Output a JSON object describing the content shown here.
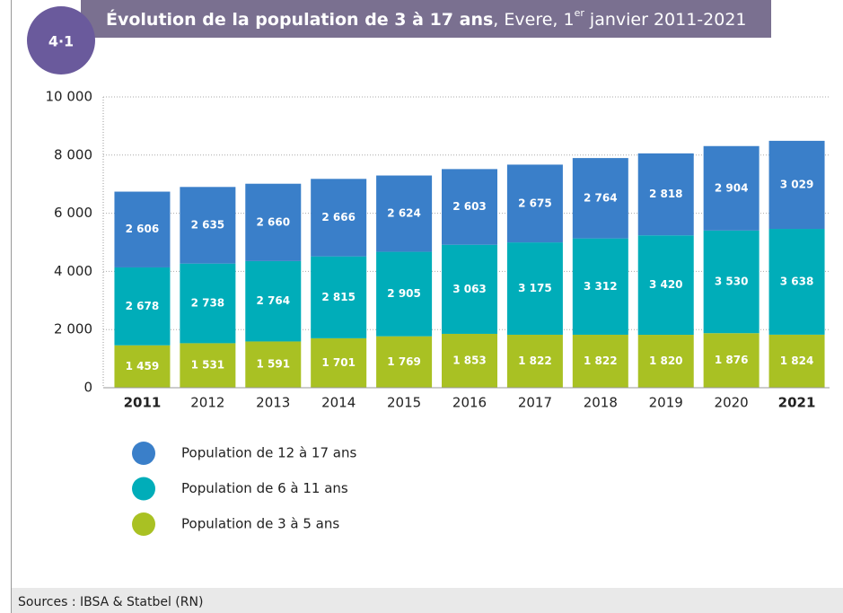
{
  "badge": "4·1",
  "source": "Sources : IBSA & Statbel (RN)",
  "chart_data": {
    "type": "stacked_bar",
    "title": "Évolution de la population de 3 à 17 ans",
    "title_suffix": ", Evere, 1",
    "title_sup": "er",
    "title_end": " janvier 2011-2021",
    "categories": [
      "2011",
      "2012",
      "2013",
      "2014",
      "2015",
      "2016",
      "2017",
      "2018",
      "2019",
      "2020",
      "2021"
    ],
    "series": [
      {
        "name": "Population de 3 à 5 ans",
        "color": "#a9c123",
        "values": [
          1459,
          1531,
          1591,
          1701,
          1769,
          1853,
          1822,
          1822,
          1820,
          1876,
          1824
        ],
        "value_labels": [
          "1 459",
          "1 531",
          "1 591",
          "1 701",
          "1 769",
          "1 853",
          "1 822",
          "1 822",
          "1 820",
          "1 876",
          "1 824"
        ]
      },
      {
        "name": "Population de 6 à 11 ans",
        "color": "#00adb9",
        "values": [
          2678,
          2738,
          2764,
          2815,
          2905,
          3063,
          3175,
          3312,
          3420,
          3530,
          3638
        ],
        "value_labels": [
          "2 678",
          "2 738",
          "2 764",
          "2 815",
          "2 905",
          "3 063",
          "3 175",
          "3 312",
          "3 420",
          "3 530",
          "3 638"
        ]
      },
      {
        "name": "Population de 12 à 17 ans",
        "color": "#3a7fc9",
        "values": [
          2606,
          2635,
          2660,
          2666,
          2624,
          2603,
          2675,
          2764,
          2818,
          2904,
          3029
        ],
        "value_labels": [
          "2 606",
          "2 635",
          "2 660",
          "2 666",
          "2 624",
          "2 603",
          "2 675",
          "2 764",
          "2 818",
          "2 904",
          "3 029"
        ]
      }
    ],
    "ylim": [
      0,
      10000
    ],
    "yticks": [
      0,
      {
        "value": 2000,
        "label": "2 000"
      },
      {
        "value": 4000,
        "label": "4 000"
      },
      {
        "value": 6000,
        "label": "6 000"
      },
      {
        "value": 8000,
        "label": "8 000"
      },
      {
        "value": 10000,
        "label": "10 000"
      }
    ],
    "grid": true
  }
}
